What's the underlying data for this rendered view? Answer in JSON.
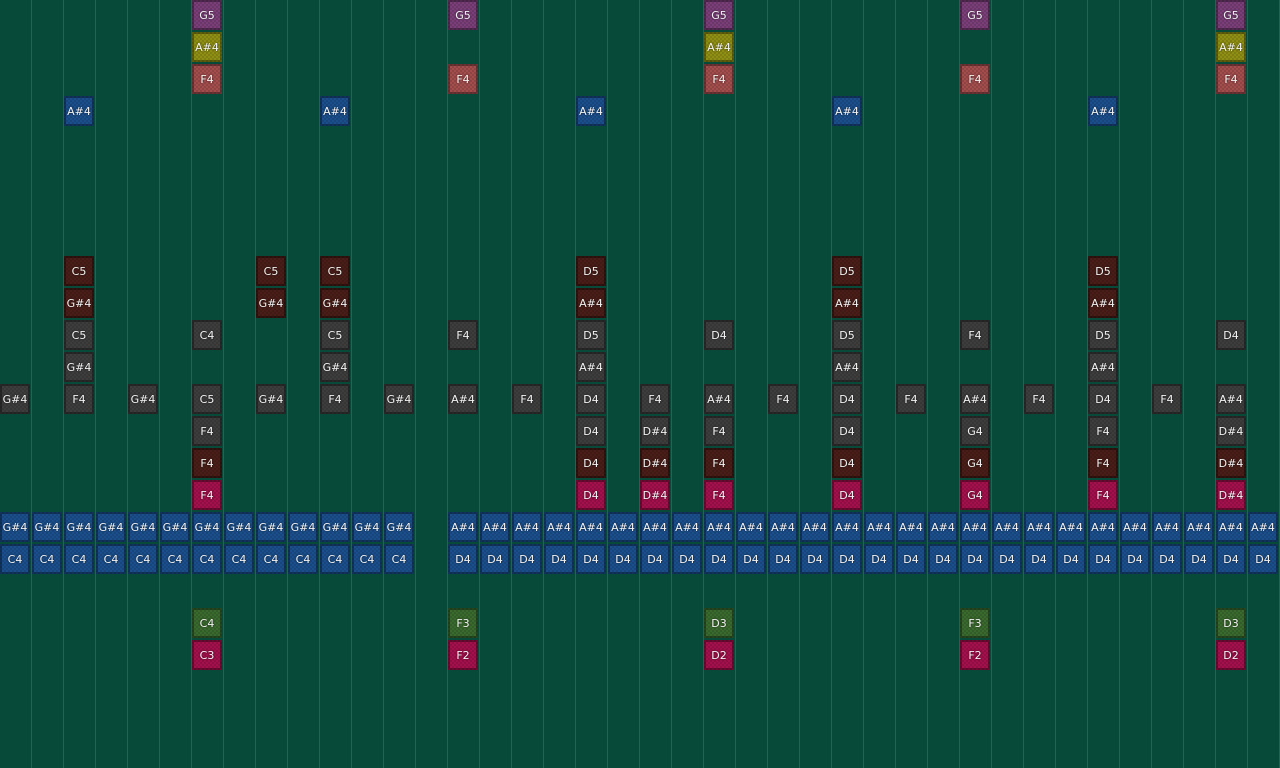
{
  "lanes": [
    {
      "name": "lane-g5",
      "color": "#7a3f78",
      "notes": [
        [
          6,
          "G5"
        ],
        [
          14,
          "G5"
        ],
        [
          22,
          "G5"
        ],
        [
          30,
          "G5"
        ],
        [
          38,
          "G5"
        ]
      ]
    },
    {
      "name": "lane-a4-olive",
      "color": "#8f8f14",
      "notes": [
        [
          6,
          "A#4"
        ],
        [
          22,
          "A#4"
        ],
        [
          38,
          "A#4"
        ]
      ]
    },
    {
      "name": "lane-f4-salmon",
      "color": "#a34d4d",
      "notes": [
        [
          6,
          "F4"
        ],
        [
          14,
          "F4"
        ],
        [
          22,
          "F4"
        ],
        [
          30,
          "F4"
        ],
        [
          38,
          "F4"
        ]
      ]
    },
    {
      "name": "lane-a4-blue",
      "color": "#1b4f8c",
      "notes": [
        [
          2,
          "A#4"
        ],
        [
          10,
          "A#4"
        ],
        [
          18,
          "A#4"
        ],
        [
          26,
          "A#4"
        ],
        [
          34,
          "A#4"
        ]
      ]
    },
    {
      "name": "empty",
      "color": "",
      "notes": []
    },
    {
      "name": "empty",
      "color": "",
      "notes": []
    },
    {
      "name": "empty",
      "color": "",
      "notes": []
    },
    {
      "name": "empty",
      "color": "",
      "notes": []
    },
    {
      "name": "lane-brown-1",
      "color": "#4a1e18",
      "notes": [
        [
          2,
          "C5"
        ],
        [
          8,
          "C5"
        ],
        [
          10,
          "C5"
        ],
        [
          18,
          "D5"
        ],
        [
          26,
          "D5"
        ],
        [
          34,
          "D5"
        ]
      ]
    },
    {
      "name": "lane-brown-2",
      "color": "#4a1e18",
      "notes": [
        [
          2,
          "G#4"
        ],
        [
          8,
          "G#4"
        ],
        [
          10,
          "G#4"
        ],
        [
          18,
          "A#4"
        ],
        [
          26,
          "A#4"
        ],
        [
          34,
          "A#4"
        ]
      ]
    },
    {
      "name": "lane-gray-1",
      "color": "#3d3d3d",
      "notes": [
        [
          2,
          "C5"
        ],
        [
          6,
          "C4"
        ],
        [
          10,
          "C5"
        ],
        [
          14,
          "F4"
        ],
        [
          18,
          "D5"
        ],
        [
          22,
          "D4"
        ],
        [
          26,
          "D5"
        ],
        [
          30,
          "F4"
        ],
        [
          34,
          "D5"
        ],
        [
          38,
          "D4"
        ]
      ]
    },
    {
      "name": "lane-gray-2",
      "color": "#3d3d3d",
      "notes": [
        [
          2,
          "G#4"
        ],
        [
          10,
          "G#4"
        ],
        [
          18,
          "A#4"
        ],
        [
          26,
          "A#4"
        ],
        [
          34,
          "A#4"
        ]
      ]
    },
    {
      "name": "lane-gray-3",
      "color": "#3d3d3d",
      "notes": [
        [
          0,
          "G#4"
        ],
        [
          2,
          "F4"
        ],
        [
          4,
          "G#4"
        ],
        [
          6,
          "C5"
        ],
        [
          8,
          "G#4"
        ],
        [
          10,
          "F4"
        ],
        [
          12,
          "G#4"
        ],
        [
          14,
          "A#4"
        ],
        [
          16,
          "F4"
        ],
        [
          18,
          "D4"
        ],
        [
          20,
          "F4"
        ],
        [
          22,
          "A#4"
        ],
        [
          24,
          "F4"
        ],
        [
          26,
          "D4"
        ],
        [
          28,
          "F4"
        ],
        [
          30,
          "A#4"
        ],
        [
          32,
          "F4"
        ],
        [
          34,
          "D4"
        ],
        [
          36,
          "F4"
        ],
        [
          38,
          "A#4"
        ]
      ]
    },
    {
      "name": "lane-gray-4",
      "color": "#3d3d3d",
      "notes": [
        [
          6,
          "F4"
        ],
        [
          18,
          "D4"
        ],
        [
          20,
          "D#4"
        ],
        [
          22,
          "F4"
        ],
        [
          26,
          "D4"
        ],
        [
          30,
          "G4"
        ],
        [
          34,
          "F4"
        ],
        [
          38,
          "D#4"
        ]
      ]
    },
    {
      "name": "lane-brown-3",
      "color": "#4a1e18",
      "notes": [
        [
          6,
          "F4"
        ],
        [
          18,
          "D4"
        ],
        [
          20,
          "D#4"
        ],
        [
          22,
          "F4"
        ],
        [
          26,
          "D4"
        ],
        [
          30,
          "G4"
        ],
        [
          34,
          "F4"
        ],
        [
          38,
          "D#4"
        ]
      ]
    },
    {
      "name": "lane-pink",
      "color": "#a3104c",
      "notes": [
        [
          6,
          "F4"
        ],
        [
          18,
          "D4"
        ],
        [
          20,
          "D#4"
        ],
        [
          22,
          "F4"
        ],
        [
          26,
          "D4"
        ],
        [
          30,
          "G4"
        ],
        [
          34,
          "F4"
        ],
        [
          38,
          "D#4"
        ]
      ]
    },
    {
      "name": "lane-blue-chord",
      "color": "#1b4f8c",
      "notes": [
        [
          0,
          "G#4"
        ],
        [
          1,
          "G#4"
        ],
        [
          2,
          "G#4"
        ],
        [
          3,
          "G#4"
        ],
        [
          4,
          "G#4"
        ],
        [
          5,
          "G#4"
        ],
        [
          6,
          "G#4"
        ],
        [
          7,
          "G#4"
        ],
        [
          8,
          "G#4"
        ],
        [
          9,
          "G#4"
        ],
        [
          10,
          "G#4"
        ],
        [
          11,
          "G#4"
        ],
        [
          12,
          "G#4"
        ],
        [
          14,
          "A#4"
        ],
        [
          15,
          "A#4"
        ],
        [
          16,
          "A#4"
        ],
        [
          17,
          "A#4"
        ],
        [
          18,
          "A#4"
        ],
        [
          19,
          "A#4"
        ],
        [
          20,
          "A#4"
        ],
        [
          21,
          "A#4"
        ],
        [
          22,
          "A#4"
        ],
        [
          23,
          "A#4"
        ],
        [
          24,
          "A#4"
        ],
        [
          25,
          "A#4"
        ],
        [
          26,
          "A#4"
        ],
        [
          27,
          "A#4"
        ],
        [
          28,
          "A#4"
        ],
        [
          29,
          "A#4"
        ],
        [
          30,
          "A#4"
        ],
        [
          31,
          "A#4"
        ],
        [
          32,
          "A#4"
        ],
        [
          33,
          "A#4"
        ],
        [
          34,
          "A#4"
        ],
        [
          35,
          "A#4"
        ],
        [
          36,
          "A#4"
        ],
        [
          37,
          "A#4"
        ],
        [
          38,
          "A#4"
        ],
        [
          39,
          "A#4"
        ]
      ]
    },
    {
      "name": "lane-blue-root",
      "color": "#1b4f8c",
      "notes": [
        [
          0,
          "C4"
        ],
        [
          1,
          "C4"
        ],
        [
          2,
          "C4"
        ],
        [
          3,
          "C4"
        ],
        [
          4,
          "C4"
        ],
        [
          5,
          "C4"
        ],
        [
          6,
          "C4"
        ],
        [
          7,
          "C4"
        ],
        [
          8,
          "C4"
        ],
        [
          9,
          "C4"
        ],
        [
          10,
          "C4"
        ],
        [
          11,
          "C4"
        ],
        [
          12,
          "C4"
        ],
        [
          14,
          "D4"
        ],
        [
          15,
          "D4"
        ],
        [
          16,
          "D4"
        ],
        [
          17,
          "D4"
        ],
        [
          18,
          "D4"
        ],
        [
          19,
          "D4"
        ],
        [
          20,
          "D4"
        ],
        [
          21,
          "D4"
        ],
        [
          22,
          "D4"
        ],
        [
          23,
          "D4"
        ],
        [
          24,
          "D4"
        ],
        [
          25,
          "D4"
        ],
        [
          26,
          "D4"
        ],
        [
          27,
          "D4"
        ],
        [
          28,
          "D4"
        ],
        [
          29,
          "D4"
        ],
        [
          30,
          "D4"
        ],
        [
          31,
          "D4"
        ],
        [
          32,
          "D4"
        ],
        [
          33,
          "D4"
        ],
        [
          34,
          "D4"
        ],
        [
          35,
          "D4"
        ],
        [
          36,
          "D4"
        ],
        [
          37,
          "D4"
        ],
        [
          38,
          "D4"
        ],
        [
          39,
          "D4"
        ]
      ]
    },
    {
      "name": "empty",
      "color": "",
      "notes": []
    },
    {
      "name": "lane-green",
      "color": "#3a6a2e",
      "notes": [
        [
          6,
          "C4"
        ],
        [
          14,
          "F3"
        ],
        [
          22,
          "D3"
        ],
        [
          30,
          "F3"
        ],
        [
          38,
          "D3"
        ]
      ]
    },
    {
      "name": "lane-bass-pink",
      "color": "#a3104c",
      "notes": [
        [
          6,
          "C3"
        ],
        [
          14,
          "F2"
        ],
        [
          22,
          "D2"
        ],
        [
          30,
          "F2"
        ],
        [
          38,
          "D2"
        ]
      ]
    }
  ]
}
